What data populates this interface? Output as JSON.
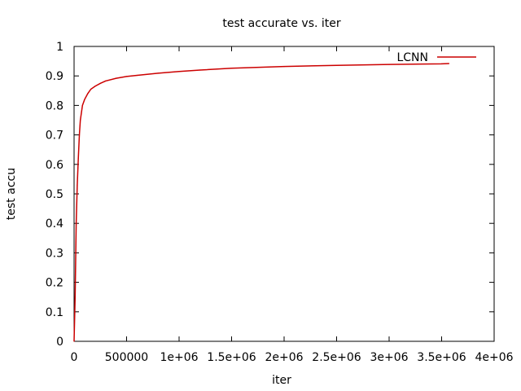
{
  "chart_data": {
    "type": "line",
    "title": "test accurate  vs. iter",
    "xlabel": "iter",
    "ylabel": "test accu",
    "xlim": [
      0,
      4000000
    ],
    "ylim": [
      0,
      1
    ],
    "x_ticks": [
      0,
      500000,
      1000000,
      1500000,
      2000000,
      2500000,
      3000000,
      3500000,
      4000000
    ],
    "x_tick_labels": [
      "0",
      "500000",
      "1e+06",
      "1.5e+06",
      "2e+06",
      "2.5e+06",
      "3e+06",
      "3.5e+06",
      "4e+06"
    ],
    "y_ticks": [
      0,
      0.1,
      0.2,
      0.3,
      0.4,
      0.5,
      0.6,
      0.7,
      0.8,
      0.9,
      1
    ],
    "y_tick_labels": [
      "0",
      "0.1",
      "0.2",
      "0.3",
      "0.4",
      "0.5",
      "0.6",
      "0.7",
      "0.8",
      "0.9",
      "1"
    ],
    "grid": false,
    "legend": "top-right",
    "series": [
      {
        "name": "LCNN",
        "color": "#cc0000",
        "x": [
          0,
          10000,
          20000,
          30000,
          40000,
          50000,
          60000,
          80000,
          100000,
          130000,
          160000,
          200000,
          250000,
          300000,
          400000,
          500000,
          600000,
          800000,
          1000000,
          1200000,
          1500000,
          2000000,
          2500000,
          3000000,
          3500000,
          3570000
        ],
        "y": [
          0.0,
          0.15,
          0.4,
          0.53,
          0.62,
          0.7,
          0.75,
          0.8,
          0.82,
          0.84,
          0.855,
          0.865,
          0.875,
          0.883,
          0.892,
          0.898,
          0.902,
          0.909,
          0.915,
          0.92,
          0.926,
          0.932,
          0.936,
          0.939,
          0.941,
          0.942
        ]
      }
    ]
  }
}
